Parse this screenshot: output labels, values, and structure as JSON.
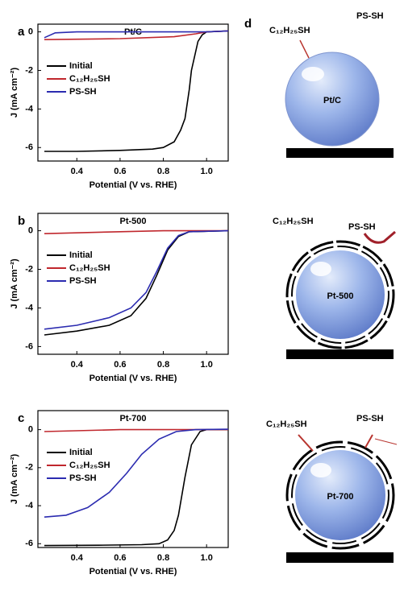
{
  "chart_data": [
    {
      "type": "line",
      "label": "a",
      "title": "Pt/C",
      "xlabel": "Potential (V vs. RHE)",
      "ylabel": "J (mA cm⁻²)",
      "xlim": [
        0.22,
        1.1
      ],
      "xticks": [
        0.4,
        0.6,
        0.8,
        {
          "value": 1,
          "label": "1.0"
        }
      ],
      "ylim": [
        -6.7,
        0.4
      ],
      "yticks": [
        0,
        -2,
        -4,
        -6
      ],
      "series": [
        {
          "name": "Initial",
          "color": "#000000",
          "x": [
            0.25,
            0.4,
            0.6,
            0.75,
            0.8,
            0.85,
            0.88,
            0.9,
            0.92,
            0.93,
            0.95,
            0.96,
            0.98,
            1.0,
            1.1
          ],
          "values": [
            -6.2,
            -6.2,
            -6.15,
            -6.08,
            -6.0,
            -5.7,
            -5.1,
            -4.5,
            -3.0,
            -2.0,
            -1.0,
            -0.5,
            -0.15,
            0,
            0.05
          ]
        },
        {
          "name": "C₁₂H₂₅SH",
          "color": "#c0272d",
          "x": [
            0.25,
            0.6,
            0.85,
            0.95,
            1.0,
            1.1
          ],
          "values": [
            -0.4,
            -0.35,
            -0.25,
            -0.1,
            0,
            0.05
          ]
        },
        {
          "name": "PS-SH",
          "color": "#2b2bb0",
          "x": [
            0.25,
            0.3,
            0.4,
            1.0,
            1.1
          ],
          "values": [
            -0.3,
            -0.05,
            0,
            0,
            0.05
          ]
        }
      ]
    },
    {
      "type": "line",
      "label": "b",
      "title": "Pt-500",
      "xlabel": "Potential (V vs. RHE)",
      "ylabel": "J (mA cm⁻²)",
      "xlim": [
        0.22,
        1.1
      ],
      "xticks": [
        0.4,
        0.6,
        0.8,
        {
          "value": 1,
          "label": "1.0"
        }
      ],
      "ylim": [
        -6.4,
        0.9
      ],
      "yticks": [
        0,
        -2,
        -4,
        -6
      ],
      "series": [
        {
          "name": "Initial",
          "color": "#000000",
          "x": [
            0.25,
            0.4,
            0.55,
            0.65,
            0.72,
            0.77,
            0.82,
            0.87,
            0.92,
            1.1
          ],
          "values": [
            -5.4,
            -5.2,
            -4.9,
            -4.4,
            -3.5,
            -2.3,
            -1.0,
            -0.3,
            -0.05,
            0
          ]
        },
        {
          "name": "C₁₂H₂₅SH",
          "color": "#c0272d",
          "x": [
            0.25,
            0.6,
            0.8,
            1.1
          ],
          "values": [
            -0.15,
            -0.05,
            0,
            0
          ]
        },
        {
          "name": "PS-SH",
          "color": "#2b2bb0",
          "x": [
            0.25,
            0.4,
            0.55,
            0.65,
            0.72,
            0.77,
            0.82,
            0.87,
            0.92,
            1.1
          ],
          "values": [
            -5.1,
            -4.9,
            -4.5,
            -4.0,
            -3.2,
            -2.1,
            -0.9,
            -0.25,
            -0.05,
            0
          ]
        }
      ]
    },
    {
      "type": "line",
      "label": "c",
      "title": "Pt-700",
      "xlabel": "Potential (V vs. RHE)",
      "ylabel": "J (mA cm⁻²)",
      "xlim": [
        0.22,
        1.1
      ],
      "xticks": [
        0.4,
        0.6,
        0.8,
        {
          "value": 1,
          "label": "1.0"
        }
      ],
      "ylim": [
        -6.2,
        1.0
      ],
      "yticks": [
        0,
        -2,
        -4,
        -6
      ],
      "series": [
        {
          "name": "Initial",
          "color": "#000000",
          "x": [
            0.25,
            0.5,
            0.7,
            0.78,
            0.82,
            0.85,
            0.87,
            0.9,
            0.93,
            0.97,
            1.0,
            1.1
          ],
          "values": [
            -6.1,
            -6.08,
            -6.05,
            -6.0,
            -5.8,
            -5.3,
            -4.5,
            -2.5,
            -0.8,
            -0.1,
            0,
            0
          ]
        },
        {
          "name": "C₁₂H₂₅SH",
          "color": "#c0272d",
          "x": [
            0.25,
            0.6,
            1.1
          ],
          "values": [
            -0.1,
            0,
            0
          ]
        },
        {
          "name": "PS-SH",
          "color": "#2b2bb0",
          "x": [
            0.25,
            0.35,
            0.45,
            0.55,
            0.63,
            0.7,
            0.78,
            0.86,
            0.95,
            1.1
          ],
          "values": [
            -4.6,
            -4.5,
            -4.1,
            -3.3,
            -2.3,
            -1.3,
            -0.5,
            -0.1,
            0,
            0.02
          ]
        }
      ]
    }
  ],
  "diagram": {
    "label": "d",
    "spheres": [
      {
        "name": "Pt/C",
        "ligand": "C₁₂H₂₅SH",
        "polymer": "PS-SH"
      },
      {
        "name": "Pt-500",
        "ligand": "C₁₂H₂₅SH",
        "polymer": "PS-SH"
      },
      {
        "name": "Pt-700",
        "ligand": "C₁₂H₂₅SH",
        "polymer": "PS-SH"
      }
    ]
  }
}
